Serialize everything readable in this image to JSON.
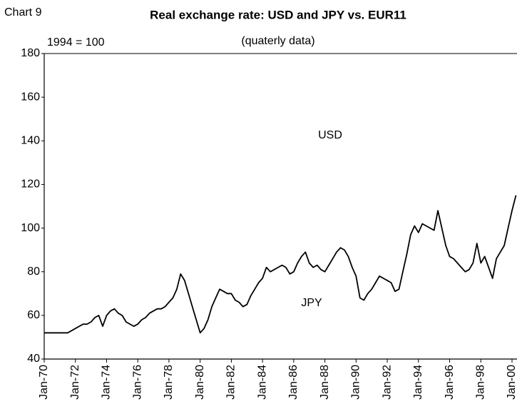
{
  "chart_data": {
    "type": "line",
    "label": "Chart 9",
    "title": "Real exchange rate: USD and JPY vs. EUR11",
    "subtitle": "(quaterly data)",
    "y_label": "1994 = 100",
    "annotations": [
      "USD",
      "JPY"
    ],
    "categories": [
      "Jan-70",
      null,
      null,
      null,
      null,
      null,
      null,
      null,
      "Jan-72",
      null,
      null,
      null,
      null,
      null,
      null,
      null,
      "Jan-74",
      null,
      null,
      null,
      null,
      null,
      null,
      null,
      "Jan-76",
      null,
      null,
      null,
      null,
      null,
      null,
      null,
      "Jan-78",
      null,
      null,
      null,
      null,
      null,
      null,
      null,
      "Jan-80",
      null,
      null,
      null,
      null,
      null,
      null,
      null,
      "Jan-82",
      null,
      null,
      null,
      null,
      null,
      null,
      null,
      "Jan-84",
      null,
      null,
      null,
      null,
      null,
      null,
      null,
      "Jan-86",
      null,
      null,
      null,
      null,
      null,
      null,
      null,
      "Jan-88",
      null,
      null,
      null,
      null,
      null,
      null,
      null,
      "Jan-90",
      null,
      null,
      null,
      null,
      null,
      null,
      null,
      "Jan-92",
      null,
      null,
      null,
      null,
      null,
      null,
      null,
      "Jan-94",
      null,
      null,
      null,
      null,
      null,
      null,
      null,
      "Jan-96",
      null,
      null,
      null,
      null,
      null,
      null,
      null,
      "Jan-98",
      null,
      null,
      null,
      null,
      null,
      null,
      null,
      "Jan-00",
      null
    ],
    "series": [
      {
        "color": "#000000",
        "values": [
          52,
          52,
          52,
          52,
          52,
          52,
          52,
          53,
          54,
          55,
          56,
          56,
          57,
          59,
          60,
          55,
          60,
          62,
          63,
          61,
          60,
          57,
          56,
          55,
          56,
          58,
          59,
          61,
          62,
          63,
          63,
          64,
          66,
          68,
          72,
          79,
          76,
          70,
          64,
          58,
          52,
          54,
          58,
          64,
          68,
          72,
          71,
          70,
          70,
          67,
          66,
          64,
          65,
          69,
          72,
          75,
          77,
          82,
          80,
          81,
          82,
          83,
          82,
          79,
          80,
          84,
          87,
          89,
          84,
          82,
          83,
          81,
          80,
          83,
          86,
          89,
          91,
          90,
          87,
          82,
          78,
          68,
          67,
          70,
          72,
          75,
          78,
          77,
          76,
          75,
          71,
          72,
          80,
          88,
          97,
          101,
          98,
          102,
          101,
          100,
          99,
          108,
          100,
          92,
          87,
          86,
          84,
          82,
          80,
          81,
          84,
          93,
          84,
          87,
          82,
          77,
          86,
          89,
          92,
          100,
          108,
          115
        ]
      }
    ],
    "ylim": [
      40,
      180
    ],
    "yticks": [
      40,
      60,
      80,
      100,
      120,
      140,
      160,
      180
    ]
  }
}
